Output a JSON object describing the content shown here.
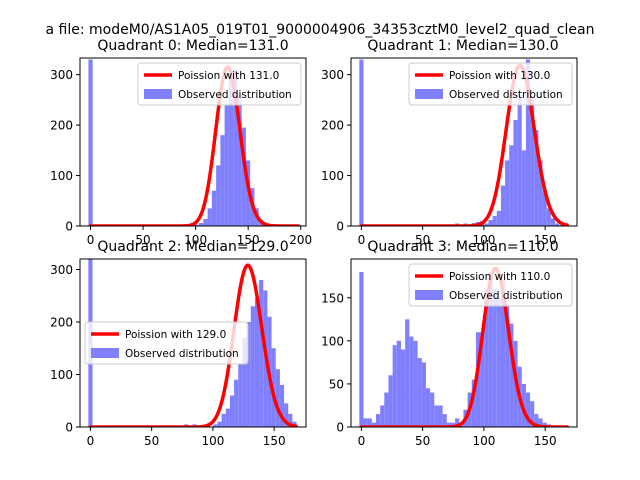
{
  "suptitle": "a file: modeM0/AS1A05_019T01_9000004906_34353cztM0_level2_quad_clean",
  "colors": {
    "hist": "#8080ff",
    "curve": "#ff0000",
    "axis": "#000000",
    "background": "#ffffff"
  },
  "chart_data": [
    {
      "type": "bar",
      "title": "Quadrant 0: Median=131.0",
      "xlim": [
        -10,
        205
      ],
      "ylim": [
        0,
        333
      ],
      "xticks": [
        0,
        50,
        100,
        150,
        200
      ],
      "yticks": [
        0,
        100,
        200,
        300
      ],
      "legend": {
        "position": "top-right",
        "curve_label": "Poission with 131.0",
        "hist_label": "Observed distribution"
      },
      "hist": {
        "start": -2,
        "width": 4.05,
        "values": [
          330,
          0,
          0,
          0,
          0,
          0,
          0,
          0,
          0,
          0,
          0,
          0,
          0,
          0,
          0,
          0,
          0,
          0,
          0,
          0,
          0,
          0,
          0,
          0,
          1,
          3,
          6,
          14,
          35,
          70,
          120,
          180,
          240,
          300,
          310,
          260,
          195,
          130,
          75,
          35,
          12,
          4,
          1,
          0,
          0,
          0,
          0,
          0,
          0,
          0
        ]
      },
      "curve": {
        "mean": 131,
        "peak": 315,
        "x_range": [
          0,
          198
        ]
      }
    },
    {
      "type": "bar",
      "title": "Quadrant 1: Median=130.0",
      "xlim": [
        -8.5,
        176
      ],
      "ylim": [
        0,
        333
      ],
      "xticks": [
        0,
        50,
        100,
        150
      ],
      "yticks": [
        0,
        100,
        200,
        300
      ],
      "legend": {
        "position": "top-right",
        "curve_label": "Poission with 130.0",
        "hist_label": "Observed distribution"
      },
      "hist": {
        "start": -1.7,
        "width": 3.4,
        "values": [
          330,
          0,
          0,
          0,
          0,
          0,
          0,
          0,
          0,
          0,
          0,
          0,
          0,
          0,
          0,
          0,
          0,
          0,
          0,
          0,
          2,
          0,
          3,
          5,
          0,
          5,
          0,
          6,
          8,
          10,
          5,
          12,
          20,
          30,
          80,
          130,
          160,
          210,
          260,
          150,
          330,
          250,
          190,
          130,
          70,
          35,
          15,
          5,
          2,
          2
        ]
      },
      "curve": {
        "mean": 130,
        "peak": 318,
        "x_range": [
          0,
          168
        ]
      }
    },
    {
      "type": "bar",
      "title": "Quadrant 2: Median=129.0",
      "xlim": [
        -8.5,
        176
      ],
      "ylim": [
        0,
        320
      ],
      "xticks": [
        0,
        50,
        100,
        150
      ],
      "yticks": [
        0,
        100,
        200,
        300
      ],
      "legend": {
        "position": "center-left",
        "curve_label": "Poission with 129.0",
        "hist_label": "Observed distribution"
      },
      "hist": {
        "start": -1.7,
        "width": 3.4,
        "values": [
          320,
          0,
          0,
          0,
          0,
          0,
          0,
          0,
          0,
          0,
          0,
          0,
          0,
          0,
          0,
          0,
          0,
          0,
          0,
          0,
          0,
          0,
          0,
          5,
          0,
          5,
          0,
          3,
          0,
          0,
          5,
          10,
          25,
          35,
          60,
          90,
          120,
          170,
          200,
          230,
          245,
          280,
          260,
          210,
          150,
          110,
          80,
          45,
          25,
          10
        ]
      },
      "curve": {
        "mean": 129,
        "peak": 308,
        "x_range": [
          0,
          168
        ]
      }
    },
    {
      "type": "bar",
      "title": "Quadrant 3: Median=110.0",
      "xlim": [
        -8.5,
        176
      ],
      "ylim": [
        0,
        195
      ],
      "xticks": [
        0,
        50,
        100,
        150
      ],
      "yticks": [
        0,
        50,
        100,
        150
      ],
      "legend": {
        "position": "top-right",
        "curve_label": "Poission with 110.0",
        "hist_label": "Observed distribution"
      },
      "hist": {
        "start": -1.7,
        "width": 3.4,
        "values": [
          180,
          10,
          10,
          5,
          15,
          25,
          40,
          60,
          95,
          100,
          90,
          125,
          105,
          100,
          80,
          75,
          45,
          40,
          25,
          25,
          15,
          5,
          5,
          10,
          5,
          20,
          40,
          55,
          110,
          110,
          160,
          180,
          160,
          150,
          170,
          140,
          120,
          100,
          70,
          50,
          40,
          30,
          15,
          10,
          5,
          3,
          2,
          1,
          0,
          0
        ]
      },
      "curve": {
        "mean": 110,
        "peak": 184,
        "x_range": [
          0,
          168
        ]
      }
    }
  ]
}
